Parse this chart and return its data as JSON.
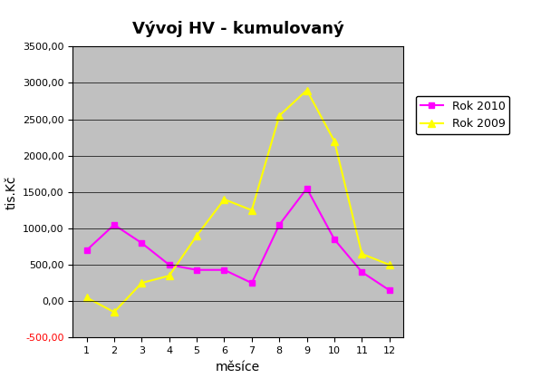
{
  "title": "Vývoj HV - kumulovaný",
  "xlabel": "měsíce",
  "ylabel": "tis.Kč",
  "months": [
    1,
    2,
    3,
    4,
    5,
    6,
    7,
    8,
    9,
    10,
    11,
    12
  ],
  "rok2010": [
    700,
    1050,
    800,
    500,
    430,
    430,
    250,
    1050,
    1550,
    850,
    400,
    150
  ],
  "rok2009": [
    50,
    -150,
    250,
    350,
    900,
    1400,
    1250,
    2550,
    2900,
    2200,
    650,
    500
  ],
  "color2010": "#ff00ff",
  "color2009": "#ffff00",
  "plot_bg": "#c0c0c0",
  "fig_bg": "#ffffff",
  "ylim_min": -500,
  "ylim_max": 3500,
  "yticks": [
    -500,
    0,
    500,
    1000,
    1500,
    2000,
    2500,
    3000,
    3500
  ],
  "legend_labels": [
    "Rok 2010",
    "Rok 2009"
  ],
  "title_fontsize": 13,
  "axis_label_fontsize": 10,
  "tick_fontsize": 8,
  "legend_fontsize": 9
}
